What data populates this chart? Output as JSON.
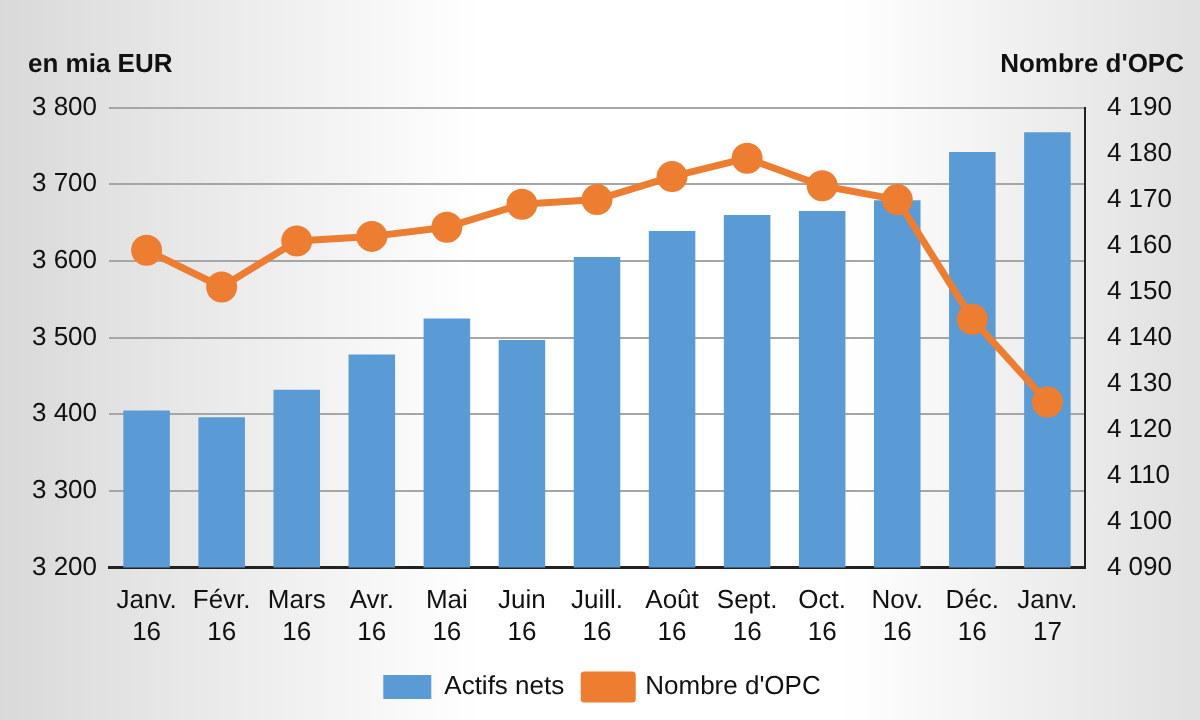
{
  "chart_data": {
    "type": "bar",
    "ylabel": "en mia EUR",
    "y2label": "Nombre d'OPC",
    "categories": [
      "Janv. 16",
      "Févr. 16",
      "Mars 16",
      "Avr. 16",
      "Mai 16",
      "Juin 16",
      "Juill. 16",
      "Août 16",
      "Sept. 16",
      "Oct. 16",
      "Nov. 16",
      "Déc. 16",
      "Janv. 17"
    ],
    "series": [
      {
        "name": "Actifs nets",
        "color": "#5b9bd5",
        "values": [
          3405,
          3396,
          3432,
          3478,
          3525,
          3497,
          3605,
          3639,
          3660,
          3665,
          3679,
          3742,
          3768
        ]
      },
      {
        "name": "Nombre d'OPC",
        "type": "line",
        "axis": "y2",
        "color": "#ed7d31",
        "values": [
          4159,
          4151,
          4161,
          4162,
          4164,
          4169,
          4170,
          4175,
          4179,
          4173,
          4170,
          4144,
          4126
        ]
      }
    ],
    "ylim": [
      3200,
      3800
    ],
    "yticks": [
      {
        "value": 3200,
        "label": "3 200"
      },
      {
        "value": 3300,
        "label": "3 300"
      },
      {
        "value": 3400,
        "label": "3 400"
      },
      {
        "value": 3500,
        "label": "3 500"
      },
      {
        "value": 3600,
        "label": "3 600"
      },
      {
        "value": 3700,
        "label": "3 700"
      },
      {
        "value": 3800,
        "label": "3 800"
      }
    ],
    "y2lim": [
      4090,
      4190
    ],
    "y2ticks": [
      {
        "value": 4090,
        "label": "4 090"
      },
      {
        "value": 4100,
        "label": "4 100"
      },
      {
        "value": 4110,
        "label": "4 110"
      },
      {
        "value": 4120,
        "label": "4 120"
      },
      {
        "value": 4130,
        "label": "4 130"
      },
      {
        "value": 4140,
        "label": "4 140"
      },
      {
        "value": 4150,
        "label": "4 150"
      },
      {
        "value": 4160,
        "label": "4 160"
      },
      {
        "value": 4170,
        "label": "4 170"
      },
      {
        "value": 4180,
        "label": "4 180"
      },
      {
        "value": 4190,
        "label": "4 190"
      }
    ],
    "grid": "y",
    "legend": "bottom",
    "marker": "circle",
    "line_style": "solid"
  }
}
